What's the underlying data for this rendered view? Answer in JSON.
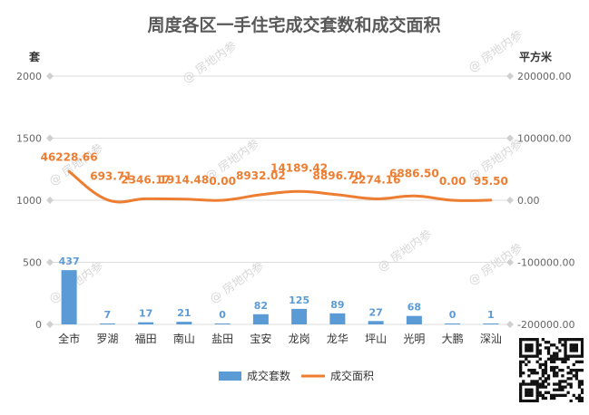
{
  "chart_data": {
    "type": "bar+line",
    "title": "周度各区一手住宅成交套数和成交面积",
    "categories": [
      "全市",
      "罗湖",
      "福田",
      "南山",
      "盐田",
      "宝安",
      "龙岗",
      "龙华",
      "坪山",
      "光明",
      "大鹏",
      "深汕"
    ],
    "series": [
      {
        "name": "成交套数",
        "type": "bar",
        "axis": "left",
        "color": "#5b9bd5",
        "values": [
          437,
          7,
          17,
          21,
          0,
          82,
          125,
          89,
          27,
          68,
          0,
          1
        ],
        "labels": [
          "437",
          "7",
          "17",
          "21",
          "0",
          "82",
          "125",
          "89",
          "27",
          "68",
          "0",
          "1"
        ]
      },
      {
        "name": "成交面积",
        "type": "line",
        "axis": "right",
        "color": "#ed7d31",
        "values": [
          46228.66,
          693.71,
          2346.17,
          1914.48,
          0.0,
          8932.02,
          14189.42,
          8896.7,
          2274.16,
          6886.5,
          0.0,
          95.5
        ],
        "labels": [
          "46228.66",
          "693.71",
          "2346.17",
          "1914.48",
          "0.00",
          "8932.02",
          "14189.42",
          "8896.70",
          "2274.16",
          "6886.50",
          "0.00",
          "95.50"
        ]
      }
    ],
    "left_axis": {
      "unit_label": "套",
      "ticks": [
        "0",
        "500",
        "1000",
        "1500",
        "2000"
      ],
      "ylim": [
        0,
        2000
      ]
    },
    "right_axis": {
      "unit_label": "平方米",
      "ticks": [
        "-200000.00",
        "-100000.00",
        "0.00",
        "100000.00",
        "200000.00"
      ],
      "ylim": [
        -200000,
        200000
      ]
    },
    "grid": true,
    "legend_position": "bottom"
  },
  "watermark": "@ 房地内参"
}
